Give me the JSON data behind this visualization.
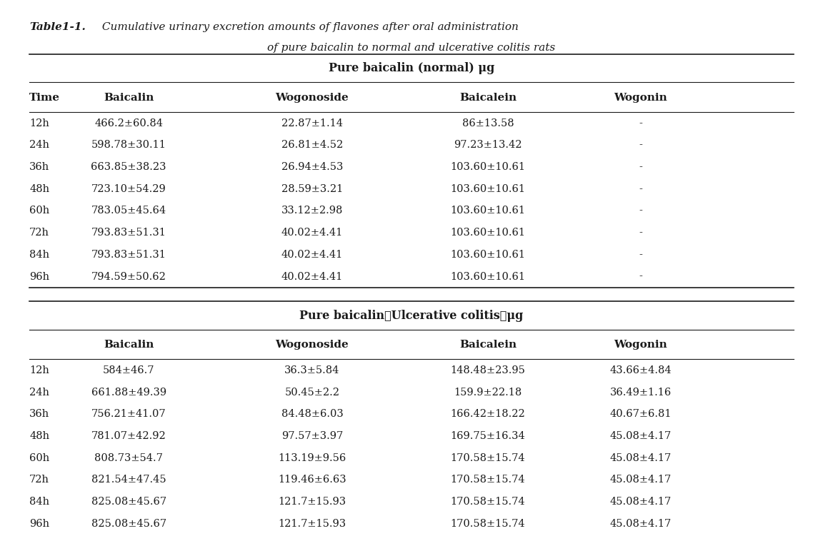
{
  "title_bold": "Table1-1.",
  "title_italic": " Cumulative urinary excretion amounts of flavones after oral administration\nof pure baicalin to normal and ulcerative colitis rats",
  "bg_color": "#ffffff",
  "text_color": "#000000",
  "table1_header_group": "Pure baicalin (normal) μg",
  "table1_col_headers": [
    "Time",
    "Baicalin",
    "Wogonoside",
    "Baicalein",
    "Wogonin"
  ],
  "table1_rows": [
    [
      "12h",
      "466.2±60.84",
      "22.87±1.14",
      "86±13.58",
      "-"
    ],
    [
      "24h",
      "598.78±30.11",
      "26.81±4.52",
      "97.23±13.42",
      "-"
    ],
    [
      "36h",
      "663.85±38.23",
      "26.94±4.53",
      "103.60±10.61",
      "-"
    ],
    [
      "48h",
      "723.10±54.29",
      "28.59±3.21",
      "103.60±10.61",
      "-"
    ],
    [
      "60h",
      "783.05±45.64",
      "33.12±2.98",
      "103.60±10.61",
      "-"
    ],
    [
      "72h",
      "793.83±51.31",
      "40.02±4.41",
      "103.60±10.61",
      "-"
    ],
    [
      "84h",
      "793.83±51.31",
      "40.02±4.41",
      "103.60±10.61",
      "-"
    ],
    [
      "96h",
      "794.59±50.62",
      "40.02±4.41",
      "103.60±10.61",
      "-"
    ]
  ],
  "table2_header_group": "Pure baicalin（Ulcerative colitis）μg",
  "table2_col_headers": [
    "",
    "Baicalin",
    "Wogonoside",
    "Baicalein",
    "Wogonin"
  ],
  "table2_rows": [
    [
      "12h",
      "584±46.7",
      "36.3±5.84",
      "148.48±23.95",
      "43.66±4.84"
    ],
    [
      "24h",
      "661.88±49.39",
      "50.45±2.2",
      "159.9±22.18",
      "36.49±1.16"
    ],
    [
      "36h",
      "756.21±41.07",
      "84.48±6.03",
      "166.42±18.22",
      "40.67±6.81"
    ],
    [
      "48h",
      "781.07±42.92",
      "97.57±3.97",
      "169.75±16.34",
      "45.08±4.17"
    ],
    [
      "60h",
      "808.73±54.7",
      "113.19±9.56",
      "170.58±15.74",
      "45.08±4.17"
    ],
    [
      "72h",
      "821.54±47.45",
      "119.46±6.63",
      "170.58±15.74",
      "45.08±4.17"
    ],
    [
      "84h",
      "825.08±45.67",
      "121.7±15.93",
      "170.58±15.74",
      "45.08±4.17"
    ],
    [
      "96h",
      "825.08±45.67",
      "121.7±15.93",
      "170.58±15.74",
      "45.08±4.17"
    ]
  ]
}
